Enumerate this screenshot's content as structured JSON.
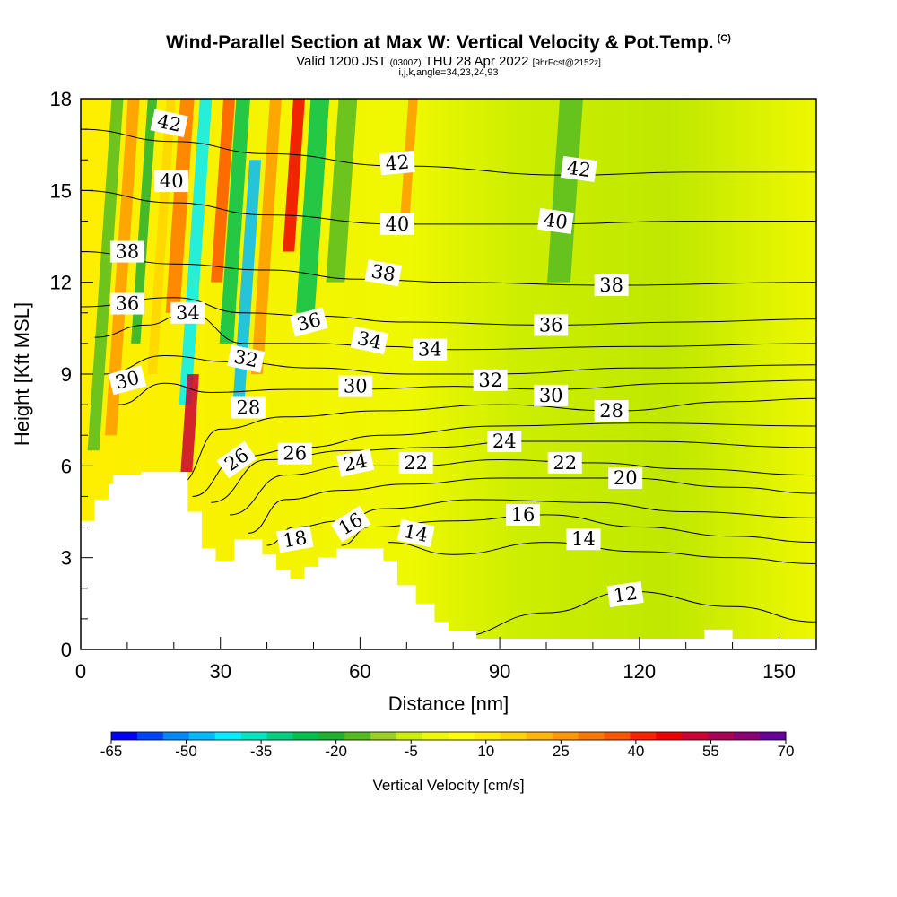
{
  "title": {
    "main": "Wind-Parallel Section at Max W: Vertical Velocity & Pot.Temp.",
    "copyright": "(C)",
    "valid_prefix": "Valid 1200 JST",
    "valid_utc": "(0300Z)",
    "valid_date": "THU 28 Apr 2022",
    "forecast": "[9hrFcst@2152z]",
    "indices": "i,j,k,angle=34,23,24,93"
  },
  "chart_data": {
    "type": "heatmap",
    "xlabel": "Distance [nm]",
    "ylabel": "Height [Kft MSL]",
    "xlim": [
      0,
      158
    ],
    "ylim": [
      0,
      18
    ],
    "x_ticks": [
      "0",
      "30",
      "60",
      "90",
      "120",
      "150"
    ],
    "y_ticks": [
      "0",
      "3",
      "6",
      "9",
      "12",
      "15",
      "18"
    ],
    "colorbar": {
      "label": "Vertical Velocity [cm/s]",
      "tick_labels": [
        "-65",
        "-50",
        "-35",
        "-20",
        "-5",
        "10",
        "25",
        "40",
        "55",
        "70"
      ],
      "colors": [
        "#0000ff",
        "#0044ff",
        "#0088ff",
        "#00bbff",
        "#00eeff",
        "#00e6c0",
        "#00d080",
        "#00c050",
        "#22b030",
        "#55bb22",
        "#99d022",
        "#ccee00",
        "#eef800",
        "#ffff00",
        "#ffee00",
        "#ffd500",
        "#ffb800",
        "#ff9900",
        "#ff7700",
        "#ff5500",
        "#ff2200",
        "#ee0000",
        "#cc0033",
        "#aa0055",
        "#8a0077",
        "#660099"
      ]
    },
    "terrain_profile": [
      [
        0,
        4.2
      ],
      [
        3,
        4.2
      ],
      [
        3,
        4.9
      ],
      [
        6,
        4.9
      ],
      [
        6,
        5.4
      ],
      [
        7,
        5.4
      ],
      [
        7,
        5.7
      ],
      [
        13,
        5.7
      ],
      [
        13,
        5.8
      ],
      [
        23,
        5.8
      ],
      [
        23,
        4.5
      ],
      [
        26,
        4.5
      ],
      [
        26,
        3.3
      ],
      [
        29,
        3.3
      ],
      [
        29,
        2.9
      ],
      [
        33,
        2.9
      ],
      [
        33,
        3.6
      ],
      [
        39,
        3.6
      ],
      [
        39,
        3.1
      ],
      [
        42,
        3.1
      ],
      [
        42,
        2.6
      ],
      [
        45,
        2.6
      ],
      [
        45,
        2.3
      ],
      [
        48,
        2.3
      ],
      [
        48,
        2.7
      ],
      [
        51,
        2.7
      ],
      [
        51,
        3.0
      ],
      [
        55,
        3.0
      ],
      [
        55,
        3.3
      ],
      [
        65,
        3.3
      ],
      [
        65,
        2.9
      ],
      [
        68,
        2.9
      ],
      [
        68,
        2.1
      ],
      [
        72,
        2.1
      ],
      [
        72,
        1.5
      ],
      [
        76,
        1.5
      ],
      [
        76,
        0.9
      ],
      [
        79,
        0.9
      ],
      [
        79,
        0.6
      ],
      [
        85,
        0.6
      ],
      [
        85,
        0.35
      ],
      [
        134,
        0.35
      ],
      [
        134,
        0.65
      ],
      [
        140,
        0.65
      ],
      [
        140,
        0.35
      ],
      [
        158,
        0.35
      ],
      [
        158,
        0
      ]
    ],
    "series": [
      {
        "name": "12",
        "label_at": [
          118,
          1.8
        ],
        "points": [
          [
            80,
            0.4
          ],
          [
            100,
            1.2
          ],
          [
            118,
            1.9
          ],
          [
            140,
            1.4
          ],
          [
            158,
            0.9
          ]
        ]
      },
      {
        "name": "14",
        "label_at": [
          108,
          3.6
        ],
        "points": [
          [
            66,
            3.5
          ],
          [
            80,
            3.1
          ],
          [
            100,
            3.5
          ],
          [
            120,
            3.2
          ],
          [
            140,
            3.0
          ],
          [
            158,
            2.8
          ]
        ]
      },
      {
        "name": "16",
        "label_at": [
          95,
          4.4
        ],
        "points": [
          [
            56,
            3.4
          ],
          [
            62,
            4.0
          ],
          [
            80,
            4.2
          ],
          [
            100,
            4.4
          ],
          [
            120,
            4.0
          ],
          [
            140,
            3.7
          ],
          [
            158,
            3.5
          ]
        ]
      },
      {
        "name": "18",
        "label_at": [
          46,
          3.6
        ],
        "points": [
          [
            40,
            3.4
          ],
          [
            46,
            4.0
          ],
          [
            56,
            4.2
          ],
          [
            65,
            4.6
          ],
          [
            85,
            4.9
          ],
          [
            110,
            4.8
          ],
          [
            130,
            4.5
          ],
          [
            158,
            4.3
          ]
        ]
      },
      {
        "name": "20",
        "label_at": [
          117,
          5.5
        ],
        "points": [
          [
            36,
            3.8
          ],
          [
            44,
            4.9
          ],
          [
            56,
            5.2
          ],
          [
            70,
            5.4
          ],
          [
            90,
            5.6
          ],
          [
            117,
            5.6
          ],
          [
            140,
            5.3
          ],
          [
            158,
            5.1
          ]
        ]
      },
      {
        "name": "22",
        "label_at": [
          72,
          6.0
        ],
        "points": [
          [
            32,
            4.4
          ],
          [
            44,
            5.7
          ],
          [
            58,
            6.0
          ],
          [
            72,
            6.0
          ],
          [
            90,
            6.2
          ],
          [
            110,
            6.1
          ],
          [
            130,
            5.9
          ],
          [
            158,
            5.7
          ]
        ]
      },
      {
        "name": "24",
        "label_at": [
          88,
          6.7
        ],
        "points": [
          [
            28,
            4.8
          ],
          [
            40,
            6.2
          ],
          [
            58,
            6.5
          ],
          [
            75,
            6.6
          ],
          [
            95,
            6.8
          ],
          [
            120,
            6.8
          ],
          [
            158,
            6.6
          ]
        ]
      },
      {
        "name": "26",
        "label_at": [
          41,
          6.4
        ],
        "points": [
          [
            24,
            5.0
          ],
          [
            34,
            6.3
          ],
          [
            48,
            6.6
          ],
          [
            65,
            7.0
          ],
          [
            90,
            7.3
          ],
          [
            120,
            7.4
          ],
          [
            158,
            7.3
          ]
        ]
      },
      {
        "name": "28",
        "label_at": [
          115,
          7.8
        ],
        "points": [
          [
            21,
            5.4
          ],
          [
            30,
            7.2
          ],
          [
            44,
            7.6
          ],
          [
            65,
            7.8
          ],
          [
            90,
            8.0
          ],
          [
            115,
            7.8
          ],
          [
            140,
            8.1
          ],
          [
            158,
            8.2
          ]
        ]
      },
      {
        "name": "30",
        "label_at": [
          100,
          8.3
        ],
        "points": [
          [
            8,
            8.0
          ],
          [
            18,
            8.7
          ],
          [
            28,
            8.4
          ],
          [
            45,
            8.5
          ],
          [
            60,
            8.5
          ],
          [
            80,
            8.6
          ],
          [
            100,
            8.5
          ],
          [
            130,
            8.7
          ],
          [
            158,
            8.8
          ]
        ]
      },
      {
        "name": "32",
        "label_at": [
          88,
          8.8
        ],
        "points": [
          [
            5,
            9.0
          ],
          [
            18,
            9.6
          ],
          [
            32,
            9.4
          ],
          [
            50,
            9.2
          ],
          [
            70,
            9.0
          ],
          [
            88,
            9.0
          ],
          [
            120,
            9.2
          ],
          [
            158,
            9.3
          ]
        ]
      },
      {
        "name": "34",
        "label_at": [
          75,
          9.8
        ],
        "points": [
          [
            3,
            10.2
          ],
          [
            14,
            10.6
          ],
          [
            23,
            11.0
          ],
          [
            35,
            10.0
          ],
          [
            50,
            10.0
          ],
          [
            65,
            9.9
          ],
          [
            80,
            9.8
          ],
          [
            120,
            9.9
          ],
          [
            158,
            10.0
          ]
        ]
      },
      {
        "name": "36",
        "label_at": [
          100,
          10.6
        ],
        "points": [
          [
            0,
            11.2
          ],
          [
            20,
            11.5
          ],
          [
            35,
            11.0
          ],
          [
            50,
            10.9
          ],
          [
            70,
            10.7
          ],
          [
            100,
            10.6
          ],
          [
            130,
            10.7
          ],
          [
            158,
            10.8
          ]
        ]
      },
      {
        "name": "38",
        "label_at": [
          113,
          11.9
        ],
        "points": [
          [
            0,
            13.0
          ],
          [
            20,
            12.6
          ],
          [
            40,
            12.4
          ],
          [
            60,
            12.1
          ],
          [
            80,
            12.0
          ],
          [
            113,
            11.9
          ],
          [
            158,
            12.0
          ]
        ]
      },
      {
        "name": "40",
        "label_at": [
          68,
          13.9
        ],
        "points": [
          [
            0,
            15.0
          ],
          [
            20,
            14.6
          ],
          [
            40,
            14.2
          ],
          [
            68,
            13.9
          ],
          [
            100,
            13.9
          ],
          [
            130,
            14.0
          ],
          [
            158,
            14.0
          ]
        ]
      },
      {
        "name": "42",
        "label_at": [
          68,
          15.9
        ],
        "points": [
          [
            0,
            17.0
          ],
          [
            20,
            16.6
          ],
          [
            40,
            16.2
          ],
          [
            68,
            15.8
          ],
          [
            105,
            15.5
          ],
          [
            130,
            15.6
          ],
          [
            158,
            15.6
          ]
        ]
      }
    ],
    "contour_labels": [
      {
        "text": "42",
        "x": 19,
        "y": 17.2,
        "angle": 12
      },
      {
        "text": "40",
        "x": 19.5,
        "y": 15.3,
        "angle": 0
      },
      {
        "text": "38",
        "x": 10,
        "y": 13.0,
        "angle": 0
      },
      {
        "text": "36",
        "x": 10,
        "y": 11.3,
        "angle": 0
      },
      {
        "text": "34",
        "x": 23,
        "y": 11.0,
        "angle": 0
      },
      {
        "text": "32",
        "x": 35.5,
        "y": 9.5,
        "angle": 12
      },
      {
        "text": "30",
        "x": 10,
        "y": 8.8,
        "angle": -15
      },
      {
        "text": "28",
        "x": 36,
        "y": 7.9,
        "angle": 0
      },
      {
        "text": "26",
        "x": 33.5,
        "y": 6.2,
        "angle": -35
      },
      {
        "text": "26",
        "x": 46,
        "y": 6.4,
        "angle": 0
      },
      {
        "text": "36",
        "x": 49,
        "y": 10.7,
        "angle": -15
      },
      {
        "text": "34",
        "x": 62,
        "y": 10.1,
        "angle": 12
      },
      {
        "text": "30",
        "x": 59,
        "y": 8.6,
        "angle": 0
      },
      {
        "text": "24",
        "x": 59,
        "y": 6.1,
        "angle": -12
      },
      {
        "text": "18",
        "x": 46,
        "y": 3.6,
        "angle": -10
      },
      {
        "text": "16",
        "x": 58,
        "y": 4.1,
        "angle": -32
      },
      {
        "text": "14",
        "x": 72,
        "y": 3.8,
        "angle": 12
      },
      {
        "text": "22",
        "x": 72,
        "y": 6.1,
        "angle": 0
      },
      {
        "text": "42",
        "x": 68,
        "y": 15.9,
        "angle": -5
      },
      {
        "text": "40",
        "x": 68,
        "y": 13.9,
        "angle": 0
      },
      {
        "text": "38",
        "x": 65,
        "y": 12.3,
        "angle": 10
      },
      {
        "text": "34",
        "x": 75,
        "y": 9.8,
        "angle": 0
      },
      {
        "text": "32",
        "x": 88,
        "y": 8.8,
        "angle": 0
      },
      {
        "text": "24",
        "x": 91,
        "y": 6.8,
        "angle": 0
      },
      {
        "text": "16",
        "x": 95,
        "y": 4.4,
        "angle": 0
      },
      {
        "text": "42",
        "x": 107,
        "y": 15.7,
        "angle": 8
      },
      {
        "text": "40",
        "x": 102,
        "y": 14.0,
        "angle": 8
      },
      {
        "text": "36",
        "x": 101,
        "y": 10.6,
        "angle": 0
      },
      {
        "text": "30",
        "x": 101,
        "y": 8.3,
        "angle": 0
      },
      {
        "text": "22",
        "x": 104,
        "y": 6.1,
        "angle": 0
      },
      {
        "text": "14",
        "x": 108,
        "y": 3.6,
        "angle": 0
      },
      {
        "text": "38",
        "x": 114,
        "y": 11.9,
        "angle": 0
      },
      {
        "text": "28",
        "x": 114,
        "y": 7.8,
        "angle": 0
      },
      {
        "text": "20",
        "x": 117,
        "y": 5.6,
        "angle": 0
      },
      {
        "text": "12",
        "x": 117,
        "y": 1.8,
        "angle": -8
      }
    ],
    "velocity_bands": [
      {
        "x": 2.5,
        "y0": 6.5,
        "y1": 18,
        "w": 2.5,
        "color": "#55bb22"
      },
      {
        "x": 6,
        "y0": 7,
        "y1": 18,
        "w": 2.5,
        "color": "#ff9900"
      },
      {
        "x": 10,
        "y0": 10,
        "y1": 18,
        "w": 2,
        "color": "#22b030"
      },
      {
        "x": 14,
        "y0": 9,
        "y1": 18,
        "w": 2,
        "color": "#ffd500"
      },
      {
        "x": 17.5,
        "y0": 11,
        "y1": 18,
        "w": 3,
        "color": "#ff7700"
      },
      {
        "x": 21.5,
        "y0": 8,
        "y1": 18,
        "w": 2.6,
        "color": "#00eeff"
      },
      {
        "x": 22.8,
        "y0": 5.8,
        "y1": 9,
        "w": 2.5,
        "color": "#cc0033"
      },
      {
        "x": 26.5,
        "y0": 12,
        "y1": 18,
        "w": 2.5,
        "color": "#ff5500"
      },
      {
        "x": 29.5,
        "y0": 10,
        "y1": 18,
        "w": 3,
        "color": "#00c050"
      },
      {
        "x": 33,
        "y0": 8,
        "y1": 16,
        "w": 2.5,
        "color": "#00bbff"
      },
      {
        "x": 36.5,
        "y0": 9,
        "y1": 18,
        "w": 2.5,
        "color": "#ff9900"
      },
      {
        "x": 41.5,
        "y0": 13,
        "y1": 18,
        "w": 2.5,
        "color": "#ee0000"
      },
      {
        "x": 46,
        "y0": 11,
        "y1": 18,
        "w": 4,
        "color": "#00c050"
      },
      {
        "x": 52,
        "y0": 12,
        "y1": 18,
        "w": 4,
        "color": "#55bb22"
      },
      {
        "x": 66,
        "y0": 14,
        "y1": 18,
        "w": 2,
        "color": "#ff9900"
      },
      {
        "x": 100,
        "y0": 12,
        "y1": 18,
        "w": 5,
        "color": "#55bb22"
      }
    ]
  }
}
